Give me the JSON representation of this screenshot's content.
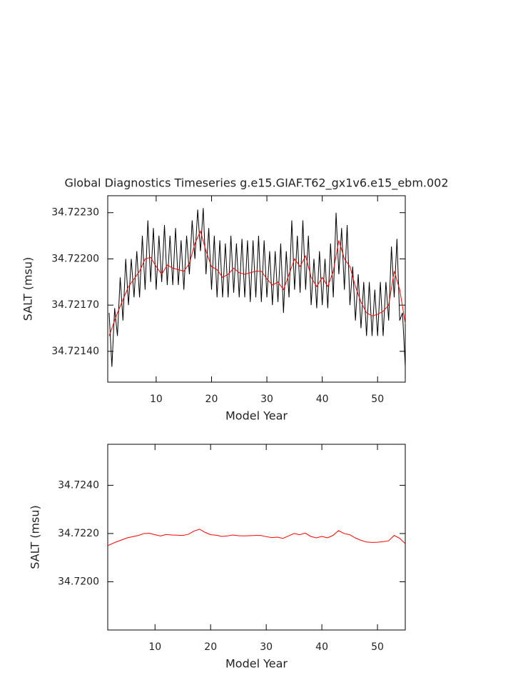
{
  "chart_data": [
    {
      "type": "line",
      "title": "Global Diagnostics Timeseries g.e15.GIAF.T62_gx1v6.e15_ebm.002",
      "x_label": "Model Year",
      "y_label": "SALT (msu)",
      "xlim": [
        1.25,
        55
      ],
      "ylim": [
        34.7212,
        34.72241
      ],
      "xticks": [
        10,
        20,
        30,
        40,
        50
      ],
      "yticks": [
        {
          "value": 34.7223,
          "label": "34.72230"
        },
        {
          "value": 34.722,
          "label": "34.72200"
        },
        {
          "value": 34.7217,
          "label": "34.72170"
        },
        {
          "value": 34.7214,
          "label": "34.72140"
        }
      ],
      "series": [
        {
          "color": "#000000",
          "x": [
            1.5,
            2,
            2.5,
            3,
            3.5,
            4,
            4.5,
            5,
            5.5,
            6,
            6.5,
            7,
            7.5,
            8,
            8.5,
            9,
            9.5,
            10,
            10.5,
            11,
            11.5,
            12,
            12.5,
            13,
            13.5,
            14,
            14.5,
            15,
            15.5,
            16,
            16.5,
            17,
            17.5,
            18,
            18.5,
            19,
            19.5,
            20,
            20.5,
            21,
            21.5,
            22,
            22.5,
            23,
            23.5,
            24,
            24.5,
            25,
            25.5,
            26,
            26.5,
            27,
            27.5,
            28,
            28.5,
            29,
            29.5,
            30,
            30.5,
            31,
            31.5,
            32,
            32.5,
            33,
            33.5,
            34,
            34.5,
            35,
            35.5,
            36,
            36.5,
            37,
            37.5,
            38,
            38.5,
            39,
            39.5,
            40,
            40.5,
            41,
            41.5,
            42,
            42.5,
            43,
            43.5,
            44,
            44.5,
            45,
            45.5,
            46,
            46.5,
            47,
            47.5,
            48,
            48.5,
            49,
            49.5,
            50,
            50.5,
            51,
            51.5,
            52,
            52.5,
            53,
            53.5,
            54,
            54.5,
            55
          ],
          "values": [
            34.72165,
            34.7213,
            34.72168,
            34.7215,
            34.72188,
            34.7216,
            34.722,
            34.7217,
            34.722,
            34.72175,
            34.72205,
            34.72175,
            34.72215,
            34.7218,
            34.72225,
            34.72185,
            34.7222,
            34.7218,
            34.72215,
            34.72185,
            34.72222,
            34.72183,
            34.72215,
            34.72183,
            34.7222,
            34.72183,
            34.72212,
            34.7218,
            34.72215,
            34.7219,
            34.72225,
            34.722,
            34.72232,
            34.72205,
            34.72233,
            34.7219,
            34.7222,
            34.7218,
            34.72215,
            34.72175,
            34.72212,
            34.72175,
            34.7221,
            34.72175,
            34.72215,
            34.72178,
            34.7221,
            34.72175,
            34.72213,
            34.72175,
            34.72212,
            34.72172,
            34.72212,
            34.72175,
            34.72215,
            34.72172,
            34.72212,
            34.72175,
            34.72205,
            34.7217,
            34.72205,
            34.72172,
            34.7221,
            34.72165,
            34.72205,
            34.72175,
            34.72225,
            34.7218,
            34.72215,
            34.72178,
            34.72225,
            34.7218,
            34.72215,
            34.7217,
            34.722,
            34.72168,
            34.72205,
            34.7217,
            34.722,
            34.72168,
            34.7221,
            34.72175,
            34.7223,
            34.7219,
            34.7222,
            34.7218,
            34.72222,
            34.7217,
            34.72195,
            34.7216,
            34.7219,
            34.72155,
            34.72185,
            34.7215,
            34.72185,
            34.7215,
            34.7218,
            34.7215,
            34.72185,
            34.7215,
            34.72185,
            34.7216,
            34.72208,
            34.72175,
            34.72213,
            34.7216,
            34.72165,
            34.7213
          ]
        },
        {
          "color": "#ff0000",
          "x": [
            1.5,
            3,
            5,
            7,
            8,
            9,
            10,
            11,
            12,
            13,
            14,
            15,
            16,
            17,
            18,
            19,
            20,
            21,
            22,
            23,
            24,
            25,
            26,
            27,
            28,
            29,
            30,
            31,
            32,
            33,
            34,
            35,
            36,
            37,
            38,
            39,
            40,
            41,
            42,
            43,
            44,
            45,
            46,
            47,
            48,
            49,
            50,
            51,
            52,
            53,
            54,
            55
          ],
          "values": [
            34.7215,
            34.72165,
            34.72182,
            34.72192,
            34.722,
            34.72201,
            34.72195,
            34.7219,
            34.72196,
            34.72194,
            34.72193,
            34.72192,
            34.72197,
            34.7221,
            34.72218,
            34.72205,
            34.72195,
            34.72193,
            34.72188,
            34.7219,
            34.72194,
            34.72191,
            34.7219,
            34.72191,
            34.72192,
            34.72192,
            34.72187,
            34.72183,
            34.72185,
            34.7218,
            34.7219,
            34.722,
            34.72195,
            34.72202,
            34.72188,
            34.72182,
            34.72188,
            34.72182,
            34.72192,
            34.72212,
            34.722,
            34.72195,
            34.72182,
            34.72172,
            34.72165,
            34.72163,
            34.72164,
            34.72166,
            34.7217,
            34.72192,
            34.7218,
            34.72158
          ]
        }
      ]
    },
    {
      "type": "line",
      "x_label": "Model Year",
      "y_label": "SALT (msu)",
      "xlim": [
        1.5,
        55
      ],
      "ylim": [
        34.718,
        34.7257
      ],
      "xticks": [
        10,
        20,
        30,
        40,
        50
      ],
      "yticks": [
        {
          "value": 34.724,
          "label": "34.7240"
        },
        {
          "value": 34.722,
          "label": "34.7220"
        },
        {
          "value": 34.72,
          "label": "34.7200"
        }
      ],
      "series": [
        {
          "color": "#ff0000",
          "x": [
            1.5,
            3,
            5,
            7,
            8,
            9,
            10,
            11,
            12,
            13,
            14,
            15,
            16,
            17,
            18,
            19,
            20,
            21,
            22,
            23,
            24,
            25,
            26,
            27,
            28,
            29,
            30,
            31,
            32,
            33,
            34,
            35,
            36,
            37,
            38,
            39,
            40,
            41,
            42,
            43,
            44,
            45,
            46,
            47,
            48,
            49,
            50,
            51,
            52,
            53,
            54,
            55
          ],
          "values": [
            34.7215,
            34.72165,
            34.72182,
            34.72192,
            34.722,
            34.72201,
            34.72195,
            34.7219,
            34.72196,
            34.72194,
            34.72193,
            34.72192,
            34.72197,
            34.7221,
            34.72218,
            34.72205,
            34.72195,
            34.72193,
            34.72188,
            34.7219,
            34.72194,
            34.72191,
            34.7219,
            34.72191,
            34.72192,
            34.72192,
            34.72187,
            34.72183,
            34.72185,
            34.7218,
            34.7219,
            34.722,
            34.72195,
            34.72202,
            34.72188,
            34.72182,
            34.72188,
            34.72182,
            34.72192,
            34.72212,
            34.722,
            34.72195,
            34.72182,
            34.72172,
            34.72165,
            34.72163,
            34.72164,
            34.72166,
            34.7217,
            34.72192,
            34.7218,
            34.72158
          ]
        }
      ]
    }
  ]
}
